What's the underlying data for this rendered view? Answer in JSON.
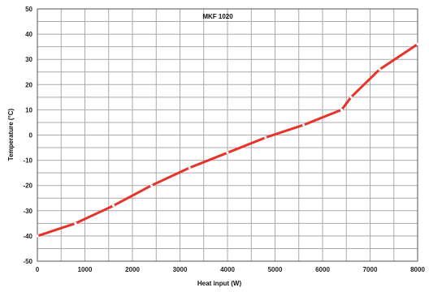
{
  "chart_data": {
    "type": "line",
    "title": "MKF 1020",
    "xlabel": "Heat input (W)",
    "ylabel": "Temperature (°C)",
    "xlim": [
      0,
      8000
    ],
    "ylim": [
      -50,
      50
    ],
    "x_ticks": [
      0,
      1000,
      2000,
      3000,
      4000,
      5000,
      6000,
      7000,
      8000
    ],
    "y_ticks": [
      -50,
      -40,
      -30,
      -20,
      -10,
      0,
      10,
      20,
      30,
      40,
      50
    ],
    "x_minor_step": 500,
    "y_minor_step": 5,
    "grid": true,
    "series": [
      {
        "color": "#e8322a",
        "x": [
          0,
          800,
          1600,
          2400,
          3200,
          4000,
          4800,
          5600,
          6400,
          6600,
          7200,
          8000
        ],
        "y": [
          -40,
          -35,
          -28,
          -20,
          -13,
          -7,
          -1,
          4,
          10,
          15,
          26,
          36
        ]
      }
    ]
  }
}
